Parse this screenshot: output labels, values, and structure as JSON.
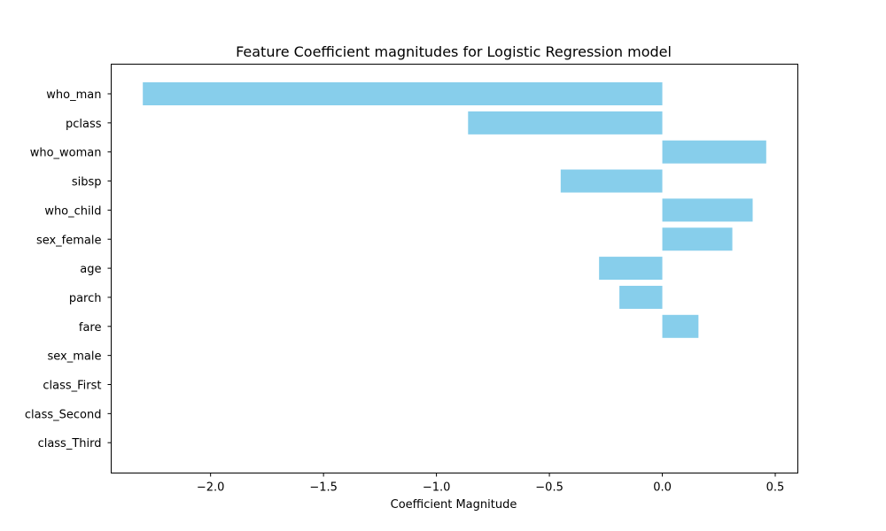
{
  "chart_data": {
    "type": "bar",
    "orientation": "horizontal",
    "title": "Feature Coefficient magnitudes for Logistic Regression model",
    "xlabel": "Coefficient Magnitude",
    "ylabel": "",
    "categories": [
      "who_man",
      "pclass",
      "who_woman",
      "sibsp",
      "who_child",
      "sex_female",
      "age",
      "parch",
      "fare",
      "sex_male",
      "class_First",
      "class_Second",
      "class_Third"
    ],
    "values": [
      -2.3,
      -0.86,
      0.46,
      -0.45,
      0.4,
      0.31,
      -0.28,
      -0.19,
      0.16,
      0,
      0,
      0,
      0
    ],
    "xlim": [
      -2.44,
      0.6
    ],
    "xticks": [
      -2.0,
      -1.5,
      -1.0,
      -0.5,
      0.0,
      0.5
    ],
    "xtick_labels": [
      "−2.0",
      "−1.5",
      "−1.0",
      "−0.5",
      "0.0",
      "0.5"
    ],
    "bar_color": "#87ceeb",
    "grid": false
  }
}
